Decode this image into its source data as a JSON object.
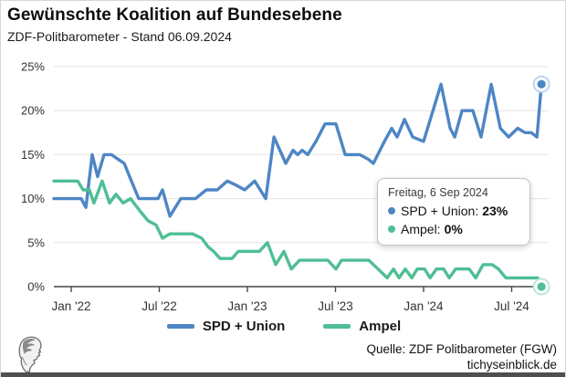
{
  "header": {
    "title": "Gewünschte Koalition auf Bundesebene",
    "subtitle": "ZDF-Politbarometer - Stand 06.09.2024"
  },
  "tooltip": {
    "date": "Freitag, 6 Sep 2024",
    "entries": [
      {
        "label": "SPD + Union:",
        "value": "23%",
        "color": "#4e86c4"
      },
      {
        "label": "Ampel:",
        "value": "0%",
        "color": "#4fbe94"
      }
    ]
  },
  "legend": [
    {
      "label": "SPD + Union",
      "color": "#4e86c4"
    },
    {
      "label": "Ampel",
      "color": "#4fbe94"
    }
  ],
  "footer": {
    "source": "Quelle: ZDF Politbarometer (FGW)",
    "site": "tichyseinblick.de"
  },
  "colors": {
    "grid": "#e4e4e4",
    "axis": "#474747",
    "tick_text": "#333333",
    "blue": "#4e86c4",
    "blue_halo": "#bdd5ec",
    "green": "#4fbe94",
    "green_halo": "#bfe7d8"
  },
  "chart_data": {
    "type": "line",
    "title": "Gewünschte Koalition auf Bundesebene",
    "subtitle": "ZDF-Politbarometer - Stand 06.09.2024",
    "x_unit": "months_since_jan_2022",
    "x_axis": {
      "tick_months": [
        0,
        6,
        12,
        18,
        24,
        30
      ],
      "tick_labels": [
        "Jan '22",
        "Jul '22",
        "Jan '23",
        "Jul '23",
        "Jan '24",
        "Jul '24"
      ]
    },
    "y_axis": {
      "ticks": [
        0,
        5,
        10,
        15,
        20,
        25
      ],
      "tick_labels": [
        "0%",
        "5%",
        "10%",
        "15%",
        "20%",
        "25%"
      ],
      "range": [
        0,
        25
      ],
      "grid": true
    },
    "legend_position": "bottom-center",
    "series": [
      {
        "name": "SPD + Union",
        "color": "#4e86c4",
        "halo": "#bdd5ec",
        "final_value": 23,
        "points": [
          [
            -1.18,
            10
          ],
          [
            0.68,
            10
          ],
          [
            1.0,
            9
          ],
          [
            1.43,
            15
          ],
          [
            1.8,
            12.5
          ],
          [
            2.24,
            15
          ],
          [
            2.74,
            15
          ],
          [
            3.17,
            14.5
          ],
          [
            3.61,
            14
          ],
          [
            4.1,
            12
          ],
          [
            4.6,
            10
          ],
          [
            5.91,
            10
          ],
          [
            6.22,
            11
          ],
          [
            6.72,
            8
          ],
          [
            7.46,
            10
          ],
          [
            8.46,
            10
          ],
          [
            9.2,
            11
          ],
          [
            9.95,
            11
          ],
          [
            10.63,
            12
          ],
          [
            11.26,
            11.5
          ],
          [
            11.82,
            11
          ],
          [
            12.5,
            12
          ],
          [
            13.25,
            10
          ],
          [
            13.81,
            17
          ],
          [
            14.61,
            14
          ],
          [
            15.11,
            15.5
          ],
          [
            15.42,
            15
          ],
          [
            15.73,
            15.5
          ],
          [
            16.11,
            15
          ],
          [
            16.67,
            16.5
          ],
          [
            17.29,
            18.5
          ],
          [
            18.03,
            18.5
          ],
          [
            18.66,
            15
          ],
          [
            19.65,
            15
          ],
          [
            20.21,
            14.5
          ],
          [
            20.58,
            14
          ],
          [
            21.33,
            16.5
          ],
          [
            21.83,
            18
          ],
          [
            22.2,
            17
          ],
          [
            22.7,
            19
          ],
          [
            23.26,
            17
          ],
          [
            24.0,
            16.5
          ],
          [
            25.19,
            23
          ],
          [
            25.81,
            18
          ],
          [
            26.12,
            17
          ],
          [
            26.62,
            20
          ],
          [
            27.36,
            20
          ],
          [
            27.92,
            17
          ],
          [
            28.61,
            23
          ],
          [
            29.23,
            18
          ],
          [
            29.79,
            17
          ],
          [
            30.41,
            18
          ],
          [
            30.91,
            17.5
          ],
          [
            31.34,
            17.5
          ],
          [
            31.72,
            17
          ],
          [
            32.03,
            23
          ]
        ]
      },
      {
        "name": "Ampel",
        "color": "#4fbe94",
        "halo": "#bfe7d8",
        "final_value": 0,
        "points": [
          [
            -1.18,
            12
          ],
          [
            0.44,
            12
          ],
          [
            0.81,
            11
          ],
          [
            1.24,
            11
          ],
          [
            1.55,
            9.5
          ],
          [
            2.11,
            12
          ],
          [
            2.61,
            9.5
          ],
          [
            3.05,
            10.5
          ],
          [
            3.54,
            9.5
          ],
          [
            4.04,
            10
          ],
          [
            4.73,
            8.5
          ],
          [
            5.22,
            7.5
          ],
          [
            5.78,
            7
          ],
          [
            6.22,
            5.5
          ],
          [
            6.72,
            6
          ],
          [
            8.27,
            6
          ],
          [
            8.89,
            5.5
          ],
          [
            9.33,
            4.5
          ],
          [
            9.7,
            4
          ],
          [
            10.14,
            3.2
          ],
          [
            10.95,
            3.2
          ],
          [
            11.38,
            4
          ],
          [
            12.81,
            4
          ],
          [
            13.37,
            5
          ],
          [
            13.93,
            2.5
          ],
          [
            14.49,
            4
          ],
          [
            14.99,
            2
          ],
          [
            15.55,
            3
          ],
          [
            15.92,
            3
          ],
          [
            17.48,
            3
          ],
          [
            18.03,
            2
          ],
          [
            18.41,
            3
          ],
          [
            20.27,
            3
          ],
          [
            20.9,
            2
          ],
          [
            21.52,
            1
          ],
          [
            21.95,
            2
          ],
          [
            22.33,
            1
          ],
          [
            22.76,
            2
          ],
          [
            23.2,
            1
          ],
          [
            23.57,
            2
          ],
          [
            24.07,
            2
          ],
          [
            24.44,
            1
          ],
          [
            24.88,
            2
          ],
          [
            25.37,
            2
          ],
          [
            25.75,
            1
          ],
          [
            26.18,
            2
          ],
          [
            27.11,
            2
          ],
          [
            27.55,
            1
          ],
          [
            28.05,
            2.5
          ],
          [
            28.67,
            2.5
          ],
          [
            29.1,
            2
          ],
          [
            29.6,
            1
          ],
          [
            30.47,
            1
          ],
          [
            31.78,
            1
          ],
          [
            32.03,
            0
          ]
        ]
      }
    ]
  }
}
